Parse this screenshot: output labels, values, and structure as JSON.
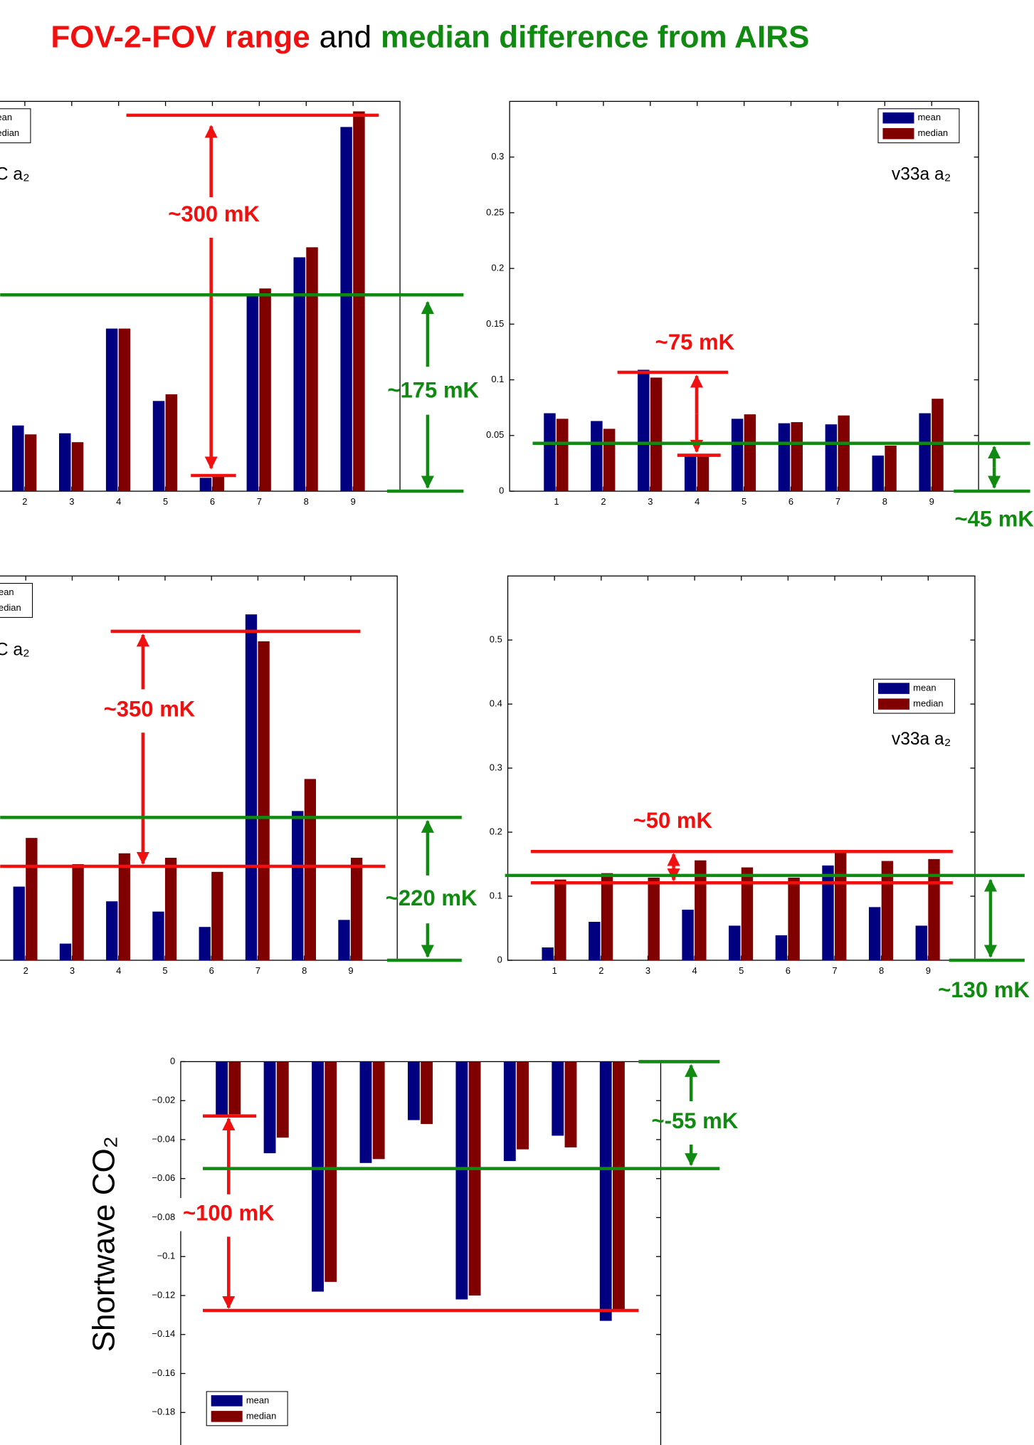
{
  "slide_title": {
    "part1": "FOV-2-FOV range",
    "part2": "and",
    "part3": "median difference from AIRS"
  },
  "chart_data": [
    {
      "type": "bar",
      "label": "C a₂",
      "x": [
        2,
        3,
        4,
        5,
        6,
        7,
        8,
        9
      ],
      "xticks": [
        2,
        3,
        4,
        5,
        6,
        7,
        8,
        9
      ],
      "xlim": [
        0,
        10
      ],
      "ylim": [
        0,
        0.35
      ],
      "legend": "upper left",
      "series": [
        {
          "name": "mean",
          "color": "#000080",
          "values": [
            0.059,
            0.052,
            0.146,
            0.081,
            0.012,
            0.175,
            0.21,
            0.327
          ]
        },
        {
          "name": "median",
          "color": "#800000",
          "values": [
            0.051,
            0.044,
            0.146,
            0.087,
            0.014,
            0.182,
            0.219,
            0.341
          ]
        }
      ],
      "annotations": [
        "~300 mK",
        "~175 mK"
      ]
    },
    {
      "type": "bar",
      "label": "v33a a₂",
      "x": [
        1,
        2,
        3,
        4,
        5,
        6,
        7,
        8,
        9
      ],
      "xticks": [
        1,
        2,
        3,
        4,
        5,
        6,
        7,
        8,
        9
      ],
      "xlim": [
        0,
        10
      ],
      "ylim": [
        0,
        0.35
      ],
      "yticks": [
        0,
        0.05,
        0.1,
        0.15,
        0.2,
        0.25,
        0.3
      ],
      "legend": "upper right",
      "series": [
        {
          "name": "mean",
          "color": "#000080",
          "values": [
            0.07,
            0.063,
            0.109,
            0.032,
            0.065,
            0.061,
            0.06,
            0.032,
            0.07
          ]
        },
        {
          "name": "median",
          "color": "#800000",
          "values": [
            0.065,
            0.056,
            0.102,
            0.032,
            0.069,
            0.062,
            0.068,
            0.041,
            0.083
          ]
        }
      ],
      "annotations": [
        "~75 mK",
        "~45 mK"
      ]
    },
    {
      "type": "bar",
      "label": "C a₂",
      "x": [
        2,
        3,
        4,
        5,
        6,
        7,
        8,
        9
      ],
      "xticks": [
        2,
        3,
        4,
        5,
        6,
        7,
        8,
        9
      ],
      "xlim": [
        0,
        10
      ],
      "ylim": [
        0,
        0.6
      ],
      "legend": "upper left",
      "series": [
        {
          "name": "mean",
          "color": "#000080",
          "values": [
            0.115,
            0.026,
            0.092,
            0.076,
            0.052,
            0.54,
            0.233,
            0.063
          ]
        },
        {
          "name": "median",
          "color": "#800000",
          "values": [
            0.191,
            0.15,
            0.167,
            0.16,
            0.138,
            0.498,
            0.283,
            0.16
          ]
        }
      ],
      "annotations": [
        "~350 mK",
        "~220 mK"
      ]
    },
    {
      "type": "bar",
      "label": "v33a a₂",
      "x": [
        1,
        2,
        3,
        4,
        5,
        6,
        7,
        8,
        9
      ],
      "xticks": [
        1,
        2,
        3,
        4,
        5,
        6,
        7,
        8,
        9
      ],
      "xlim": [
        0,
        10
      ],
      "ylim": [
        0,
        0.6
      ],
      "yticks": [
        0,
        0.1,
        0.2,
        0.3,
        0.4,
        0.5
      ],
      "legend": "right",
      "series": [
        {
          "name": "mean",
          "color": "#000080",
          "values": [
            0.02,
            0.06,
            0,
            0.079,
            0.054,
            0.039,
            0.148,
            0.083,
            0.054
          ]
        },
        {
          "name": "median",
          "color": "#800000",
          "values": [
            0.126,
            0.136,
            0.129,
            0.156,
            0.145,
            0.129,
            0.169,
            0.155,
            0.158
          ]
        }
      ],
      "annotations": [
        "~50 mK",
        "~130 mK"
      ]
    },
    {
      "type": "bar",
      "ylabel": "Shortwave CO₂",
      "x": [
        1,
        2,
        3,
        4,
        5,
        6,
        7,
        8,
        9
      ],
      "xlim": [
        0,
        10
      ],
      "ylim": [
        -0.2,
        0
      ],
      "yticks": [
        0,
        {
          "value": -0.02,
          "label": "−0.02"
        },
        {
          "value": -0.04,
          "label": "−0.04"
        },
        {
          "value": -0.06,
          "label": "−0.06"
        },
        {
          "value": -0.08,
          "label": "−0.08"
        },
        {
          "value": -0.1,
          "label": "−0.1"
        },
        {
          "value": -0.12,
          "label": "−0.12"
        },
        {
          "value": -0.14,
          "label": "−0.14"
        },
        {
          "value": -0.16,
          "label": "−0.16"
        },
        {
          "value": -0.18,
          "label": "−0.18"
        }
      ],
      "legend": "lower left",
      "series": [
        {
          "name": "mean",
          "color": "#000080",
          "values": [
            -0.0274,
            -0.047,
            -0.118,
            -0.052,
            -0.03,
            -0.122,
            -0.051,
            -0.038,
            -0.133
          ]
        },
        {
          "name": "median",
          "color": "#800000",
          "values": [
            -0.027,
            -0.039,
            -0.113,
            -0.05,
            -0.032,
            -0.12,
            -0.045,
            -0.044,
            -0.127
          ]
        }
      ],
      "annotations": [
        "~100 mK",
        "~-55 mK"
      ]
    }
  ]
}
